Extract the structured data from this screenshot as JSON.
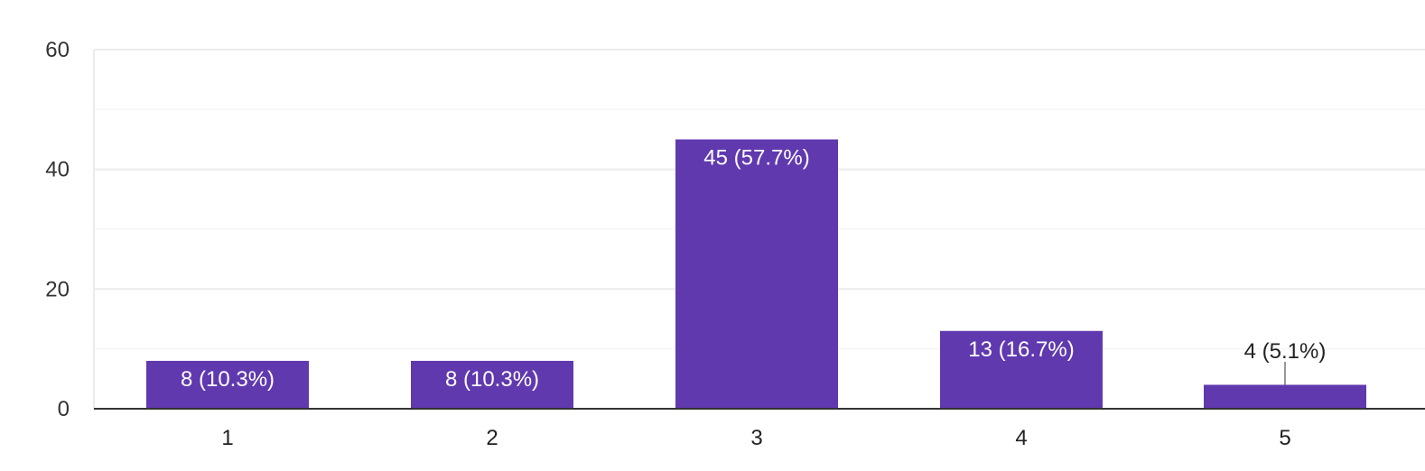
{
  "chart_data": {
    "type": "bar",
    "categories": [
      "1",
      "2",
      "3",
      "4",
      "5"
    ],
    "values": [
      8,
      8,
      45,
      13,
      4
    ],
    "data_labels": [
      "8 (10.3%)",
      "8 (10.3%)",
      "45 (57.7%)",
      "13 (16.7%)",
      "4 (5.1%)"
    ],
    "y_ticks": [
      "0",
      "20",
      "40",
      "60"
    ],
    "ylim": [
      0,
      60
    ],
    "minor_gridlines": [
      10,
      30,
      50
    ],
    "grid": true,
    "legend": "none",
    "bar_color": "#6039AF",
    "gridline_color": "#EBEBEB",
    "minor_gridline_color": "#F5F5F5",
    "axis_color": "#333333",
    "label_inside_color": "#FFFFFF",
    "label_outside_color": "#222222"
  }
}
